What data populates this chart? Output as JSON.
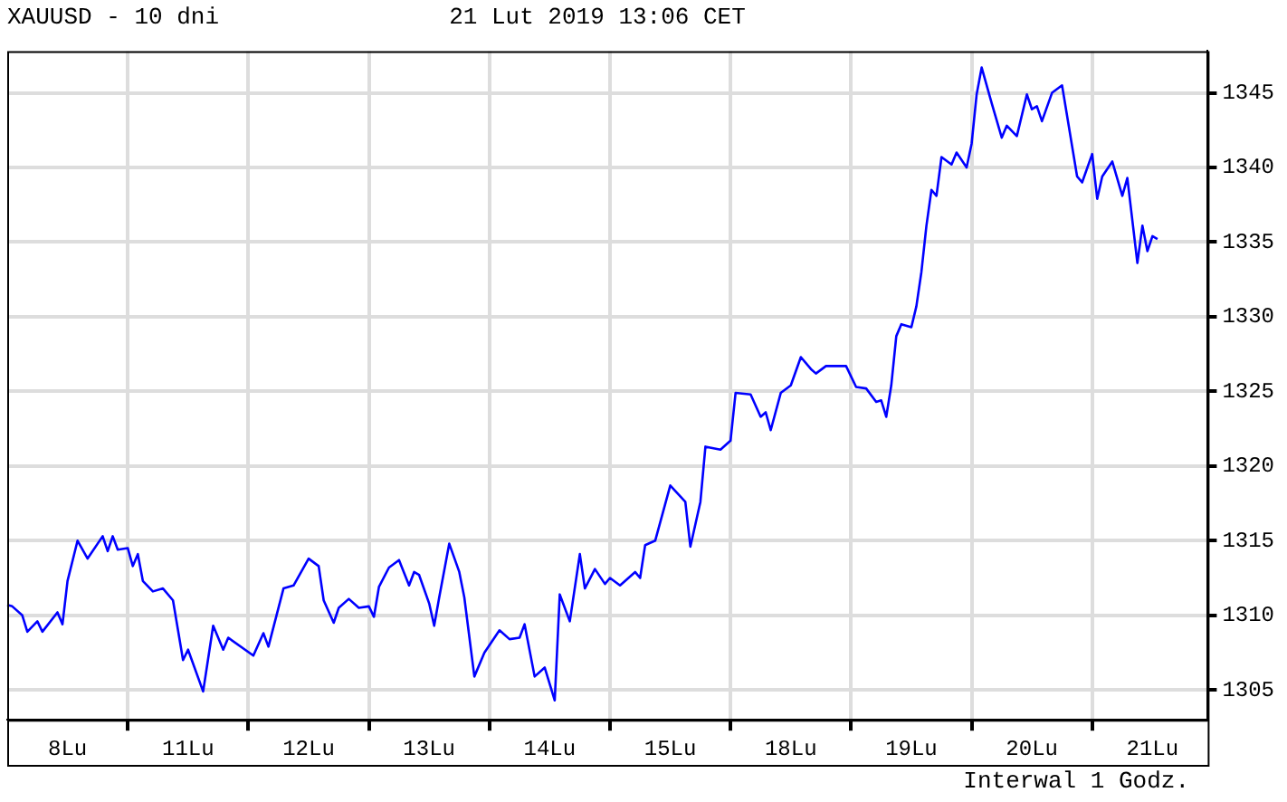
{
  "chart_data": {
    "type": "line",
    "title": "XAUUSD - 10 dni",
    "subtitle": "21 Lut 2019 13:06 CET",
    "annotations": [
      "Interwal 1 Godz."
    ],
    "categories": [
      null,
      null,
      null,
      null,
      null,
      null,
      null,
      null,
      null,
      null,
      null,
      null,
      "8Lu",
      null,
      null,
      null,
      null,
      null,
      null,
      null,
      null,
      null,
      null,
      null,
      null,
      null,
      null,
      null,
      null,
      null,
      null,
      null,
      null,
      null,
      null,
      null,
      "11Lu",
      null,
      null,
      null,
      null,
      null,
      null,
      null,
      null,
      null,
      null,
      null,
      null,
      null,
      null,
      null,
      null,
      null,
      null,
      null,
      null,
      null,
      null,
      null,
      "12Lu",
      null,
      null,
      null,
      null,
      null,
      null,
      null,
      null,
      null,
      null,
      null,
      null,
      null,
      null,
      null,
      null,
      null,
      null,
      null,
      null,
      null,
      null,
      null,
      "13Lu",
      null,
      null,
      null,
      null,
      null,
      null,
      null,
      null,
      null,
      null,
      null,
      null,
      null,
      null,
      null,
      null,
      null,
      null,
      null,
      null,
      null,
      null,
      null,
      "14Lu",
      null,
      null,
      null,
      null,
      null,
      null,
      null,
      null,
      null,
      null,
      null,
      null,
      null,
      null,
      null,
      null,
      null,
      null,
      null,
      null,
      null,
      null,
      null,
      "15Lu",
      null,
      null,
      null,
      null,
      null,
      null,
      null,
      null,
      null,
      null,
      null,
      null,
      null,
      null,
      null,
      null,
      null,
      null,
      null,
      null,
      null,
      null,
      null,
      "18Lu",
      null,
      null,
      null,
      null,
      null,
      null,
      null,
      null,
      null,
      null,
      null,
      null,
      null,
      null,
      null,
      null,
      null,
      null,
      null,
      null,
      null,
      null,
      null,
      "19Lu",
      null,
      null,
      null,
      null,
      null,
      null,
      null,
      null,
      null,
      null,
      null,
      null,
      null,
      null,
      null,
      null,
      null,
      null,
      null,
      null,
      null,
      null,
      null,
      "20Lu",
      null,
      null,
      null,
      null,
      null,
      null,
      null,
      null,
      null,
      null,
      null,
      null,
      null,
      null,
      null,
      null,
      null,
      null,
      null,
      null,
      null,
      null,
      null,
      "21Lu",
      null,
      null,
      null,
      null,
      null,
      null,
      null,
      null,
      null,
      null,
      null
    ],
    "series": [
      {
        "color": "#0000ff",
        "values": [
          1310.7,
          1310.6,
          null,
          1310.0,
          1308.9,
          null,
          1309.6,
          1308.9,
          null,
          null,
          1310.2,
          1309.4,
          1312.3,
          null,
          1315.0,
          null,
          1313.8,
          null,
          null,
          1315.3,
          1314.3,
          1315.3,
          1314.4,
          null,
          1314.5,
          1313.3,
          1314.1,
          1312.3,
          null,
          1311.6,
          null,
          1311.8,
          null,
          1311.0,
          null,
          1307.0,
          1307.7,
          null,
          null,
          1304.9,
          null,
          1309.3,
          null,
          1307.7,
          1308.5,
          null,
          null,
          null,
          null,
          1307.3,
          null,
          1308.8,
          1307.9,
          null,
          null,
          1311.8,
          null,
          1312.0,
          null,
          null,
          1313.8,
          null,
          1313.3,
          1311.0,
          null,
          1309.5,
          1310.5,
          null,
          1311.1,
          null,
          1310.5,
          null,
          1310.6,
          1309.9,
          1311.9,
          null,
          1313.2,
          null,
          1313.7,
          null,
          1312.0,
          1312.9,
          1312.7,
          null,
          1310.8,
          1309.3,
          1311.2,
          null,
          1314.8,
          null,
          1312.9,
          1311.2,
          null,
          1305.9,
          null,
          1307.5,
          null,
          null,
          1309.0,
          null,
          1308.4,
          null,
          1308.5,
          1309.4,
          null,
          1305.9,
          null,
          1306.5,
          null,
          1304.3,
          1311.4,
          null,
          1309.6,
          null,
          1314.1,
          1311.8,
          null,
          1313.1,
          null,
          1312.1,
          1312.5,
          null,
          1312.0,
          null,
          null,
          1312.9,
          1312.5,
          1314.7,
          null,
          1315.0,
          null,
          null,
          1318.7,
          null,
          null,
          1317.6,
          1314.6,
          null,
          1317.6,
          1321.3,
          null,
          null,
          1321.1,
          null,
          1321.7,
          1324.9,
          null,
          null,
          1324.8,
          null,
          1323.3,
          1323.6,
          1322.4,
          null,
          1324.9,
          null,
          1325.4,
          null,
          1327.3,
          null,
          1326.5,
          1326.2,
          null,
          1326.7,
          null,
          null,
          null,
          1326.7,
          null,
          1325.3,
          null,
          1325.2,
          null,
          1324.3,
          1324.4,
          1323.3,
          1325.4,
          1328.7,
          1329.5,
          null,
          1329.3,
          1330.7,
          1333.0,
          1336.1,
          1338.5,
          1338.1,
          1340.7,
          null,
          1340.2,
          1341.0,
          null,
          1340.0,
          1341.6,
          1344.9,
          1346.7,
          null,
          1344.3,
          null,
          1342.0,
          1342.8,
          null,
          1342.1,
          null,
          1344.9,
          1343.9,
          1344.1,
          1343.1,
          null,
          1345.0,
          null,
          1345.5,
          null,
          null,
          1339.4,
          1339.0,
          null,
          1340.9,
          1337.9,
          1339.4,
          null,
          1340.4,
          null,
          1338.1,
          1339.3,
          null,
          1333.6,
          1336.1,
          1334.4,
          1335.4,
          1335.2,
          null,
          null,
          null,
          null,
          null,
          null,
          null,
          null,
          null,
          null
        ]
      }
    ],
    "ylim": [
      1303,
      1347.8
    ],
    "yticks": [
      1305,
      1310,
      1315,
      1320,
      1325,
      1330,
      1335,
      1340,
      1345
    ],
    "grid": true,
    "legend": false
  }
}
